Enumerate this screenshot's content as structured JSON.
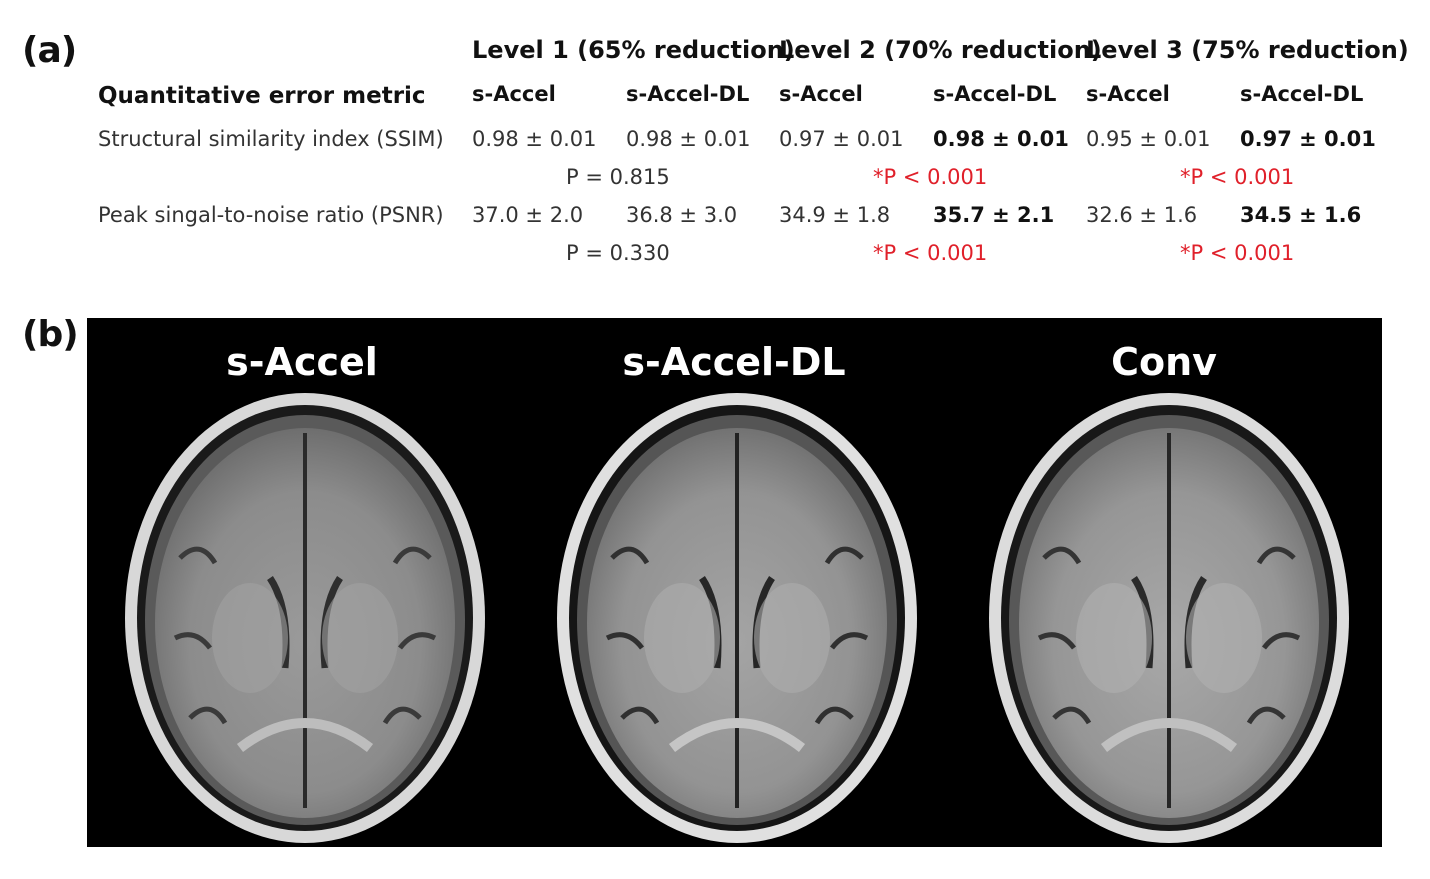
{
  "panel_a": {
    "label": "(a)",
    "row_header": "Quantitative error metric",
    "levels": [
      {
        "title": "Level 1 (65% reduction)",
        "col1": "s-Accel",
        "col2": "s-Accel-DL"
      },
      {
        "title": "Level 2 (70% reduction)",
        "col1": "s-Accel",
        "col2": "s-Accel-DL"
      },
      {
        "title": "Level 3 (75% reduction)",
        "col1": "s-Accel",
        "col2": "s-Accel-DL"
      }
    ],
    "rows": [
      {
        "metric": "Structural similarity index (SSIM)",
        "values": [
          "0.98 ± 0.01",
          "0.98 ± 0.01",
          "0.97 ± 0.01",
          "0.98 ± 0.01",
          "0.95 ± 0.01",
          "0.97 ± 0.01"
        ],
        "pvalues": [
          "P = 0.815",
          "*P < 0.001",
          "*P < 0.001"
        ]
      },
      {
        "metric": "Peak singal-to-noise ratio (PSNR)",
        "values": [
          "37.0 ± 2.0",
          "36.8 ± 3.0",
          "34.9 ± 1.8",
          "35.7 ± 2.1",
          "32.6 ± 1.6",
          "34.5 ± 1.6"
        ],
        "pvalues": [
          "P = 0.330",
          "*P < 0.001",
          "*P < 0.001"
        ]
      }
    ],
    "colors": {
      "significant": "#e0202a"
    }
  },
  "panel_b": {
    "label": "(b)",
    "images": [
      {
        "title": "s-Accel"
      },
      {
        "title": "s-Accel-DL"
      },
      {
        "title": "Conv"
      }
    ]
  }
}
